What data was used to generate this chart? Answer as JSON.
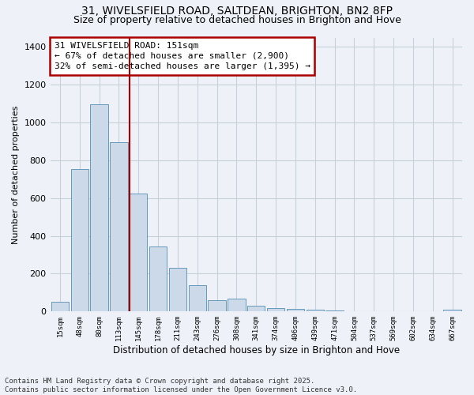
{
  "title_line1": "31, WIVELSFIELD ROAD, SALTDEAN, BRIGHTON, BN2 8FP",
  "title_line2": "Size of property relative to detached houses in Brighton and Hove",
  "xlabel": "Distribution of detached houses by size in Brighton and Hove",
  "ylabel": "Number of detached properties",
  "categories": [
    "15sqm",
    "48sqm",
    "80sqm",
    "113sqm",
    "145sqm",
    "178sqm",
    "211sqm",
    "243sqm",
    "276sqm",
    "308sqm",
    "341sqm",
    "374sqm",
    "406sqm",
    "439sqm",
    "471sqm",
    "504sqm",
    "537sqm",
    "569sqm",
    "602sqm",
    "634sqm",
    "667sqm"
  ],
  "values": [
    50,
    755,
    1095,
    895,
    625,
    345,
    230,
    140,
    60,
    70,
    30,
    20,
    12,
    8,
    4,
    2,
    1,
    0,
    0,
    0,
    10
  ],
  "bar_color": "#ccd9e8",
  "bar_edge_color": "#6699bb",
  "highlight_bar_index": 4,
  "highlight_line_color": "#aa0000",
  "annotation_box_text": "31 WIVELSFIELD ROAD: 151sqm\n← 67% of detached houses are smaller (2,900)\n32% of semi-detached houses are larger (1,395) →",
  "annotation_box_color": "#aa0000",
  "ylim": [
    0,
    1450
  ],
  "yticks": [
    0,
    200,
    400,
    600,
    800,
    1000,
    1200,
    1400
  ],
  "background_color": "#eef2f8",
  "footnote": "Contains HM Land Registry data © Crown copyright and database right 2025.\nContains public sector information licensed under the Open Government Licence v3.0.",
  "title_fontsize": 10,
  "subtitle_fontsize": 9,
  "annotation_fontsize": 8,
  "footnote_fontsize": 6.5,
  "ylabel_fontsize": 8,
  "xlabel_fontsize": 8.5
}
